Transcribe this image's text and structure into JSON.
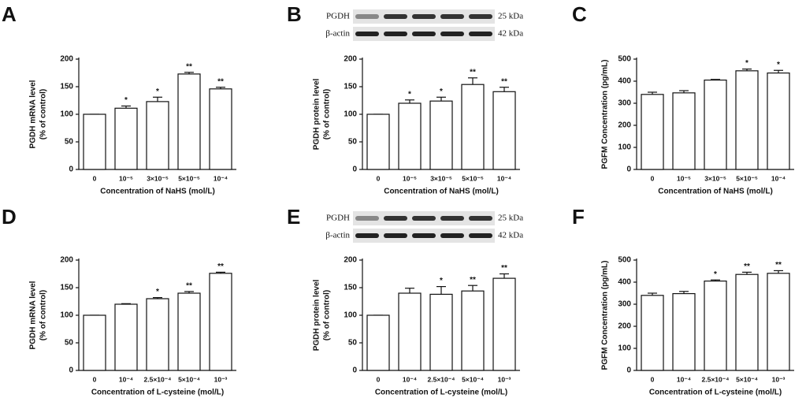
{
  "chart_data": [
    {
      "type": "bar",
      "panel": "A",
      "categories": [
        "0",
        "10⁻⁵",
        "3×10⁻⁵",
        "5×10⁻⁵",
        "10⁻⁴"
      ],
      "values": [
        100,
        111,
        123,
        173,
        146
      ],
      "errors": [
        0,
        4,
        8,
        3,
        3
      ],
      "significance": [
        null,
        "*",
        "*",
        "**",
        "**"
      ],
      "ylim": [
        0,
        200
      ],
      "yticks": [
        0,
        50,
        100,
        150,
        200
      ],
      "ylabel": [
        "PGDH mRNA level",
        "(% of control)"
      ],
      "xlabel": "Concentration of NaHS (mol/L)",
      "color": "#ffffff"
    },
    {
      "type": "bar",
      "panel": "B",
      "blot": [
        {
          "label": "PGDH",
          "size": "25 kDa"
        },
        {
          "label": "β-actin",
          "size": "42 kDa"
        }
      ],
      "categories": [
        "0",
        "10⁻⁵",
        "3×10⁻⁵",
        "5×10⁻⁵",
        "10⁻⁴"
      ],
      "values": [
        100,
        120,
        124,
        154,
        141
      ],
      "errors": [
        0,
        6,
        7,
        12,
        8
      ],
      "significance": [
        null,
        "*",
        "*",
        "**",
        "**"
      ],
      "ylim": [
        0,
        200
      ],
      "yticks": [
        0,
        50,
        100,
        150,
        200
      ],
      "ylabel": [
        "PGDH protein level",
        "(% of control)"
      ],
      "xlabel": "Concentration of NaHS (mol/L)",
      "color": "#ffffff"
    },
    {
      "type": "bar",
      "panel": "C",
      "categories": [
        "0",
        "10⁻⁵",
        "3×10⁻⁵",
        "5×10⁻⁵",
        "10⁻⁴"
      ],
      "values": [
        340,
        347,
        405,
        447,
        437
      ],
      "errors": [
        10,
        10,
        3,
        8,
        12
      ],
      "significance": [
        null,
        null,
        null,
        "*",
        "*"
      ],
      "ylim": [
        0,
        500
      ],
      "yticks": [
        0,
        100,
        200,
        300,
        400,
        500
      ],
      "ylabel": [
        "PGFM Concentration (pg/mL)"
      ],
      "xlabel": "Concentration of NaHS (mol/L)",
      "color": "#ffffff"
    },
    {
      "type": "bar",
      "panel": "D",
      "categories": [
        "0",
        "10⁻⁴",
        "2.5×10⁻⁴",
        "5×10⁻⁴",
        "10⁻³"
      ],
      "values": [
        100,
        120,
        130,
        140,
        176
      ],
      "errors": [
        0,
        1,
        2,
        3,
        2
      ],
      "significance": [
        null,
        null,
        "*",
        "**",
        "**"
      ],
      "ylim": [
        0,
        200
      ],
      "yticks": [
        0,
        50,
        100,
        150,
        200
      ],
      "ylabel": [
        "PGDH mRNA level",
        "(% of control)"
      ],
      "xlabel": "Concentration of L-cysteine (mol/L)",
      "color": "#ffffff"
    },
    {
      "type": "bar",
      "panel": "E",
      "blot": [
        {
          "label": "PGDH",
          "size": "25 kDa"
        },
        {
          "label": "β-actin",
          "size": "42 kDa"
        }
      ],
      "categories": [
        "0",
        "10⁻⁴",
        "2.5×10⁻⁴",
        "5×10⁻⁴",
        "10⁻³"
      ],
      "values": [
        100,
        140,
        138,
        144,
        167
      ],
      "errors": [
        0,
        9,
        14,
        10,
        8
      ],
      "significance": [
        null,
        null,
        "*",
        "**",
        "**"
      ],
      "ylim": [
        0,
        200
      ],
      "yticks": [
        0,
        50,
        100,
        150,
        200
      ],
      "ylabel": [
        "PGDH protein level",
        "(% of control)"
      ],
      "xlabel": "Concentration of L-cysteine (mol/L)",
      "color": "#ffffff"
    },
    {
      "type": "bar",
      "panel": "F",
      "categories": [
        "0",
        "10⁻⁴",
        "2.5×10⁻⁴",
        "5×10⁻⁴",
        "10⁻³"
      ],
      "values": [
        340,
        348,
        405,
        435,
        440
      ],
      "errors": [
        10,
        10,
        5,
        10,
        12
      ],
      "significance": [
        null,
        null,
        "*",
        "**",
        "**"
      ],
      "ylim": [
        0,
        500
      ],
      "yticks": [
        0,
        100,
        200,
        300,
        400,
        500
      ],
      "ylabel": [
        "PGFM Concentration (pg/mL)"
      ],
      "xlabel": "Concentration of L-cysteine (mol/L)",
      "color": "#ffffff"
    }
  ]
}
